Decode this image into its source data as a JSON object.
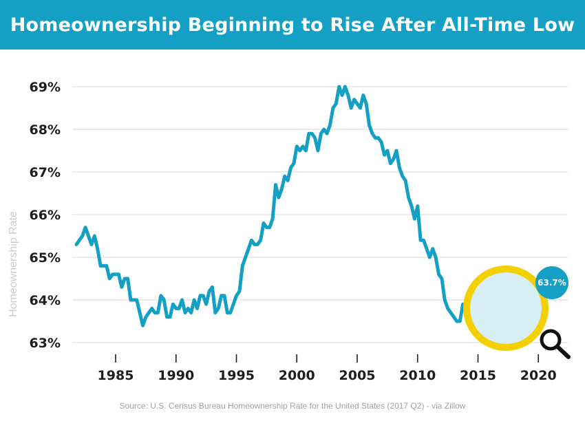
{
  "header": {
    "title": "Homeownership Beginning to Rise After All-Time Low",
    "background_color": "#149fc4"
  },
  "source_note": "Source: U.S. Census Bureau Homeownership Rate for the United States (2017 Q2) - via Zillow",
  "chart_data": {
    "type": "line",
    "title": "Homeownership Beginning to Rise After All-Time Low",
    "xlabel": "",
    "ylabel": "Homeownership Rate",
    "xlim": [
      1981.5,
      2022.5
    ],
    "ylim": [
      62.8,
      69.4
    ],
    "grid": true,
    "line_color": "#149fc4",
    "x_ticks": [
      1985,
      1990,
      1995,
      2000,
      2005,
      2010,
      2015,
      2020
    ],
    "x_tick_labels": [
      "1985",
      "1990",
      "1995",
      "2000",
      "2005",
      "2010",
      "2015",
      "2020"
    ],
    "y_ticks": [
      63,
      64,
      65,
      66,
      67,
      68,
      69
    ],
    "y_tick_labels": [
      "63%",
      "64%",
      "65%",
      "66%",
      "67%",
      "68%",
      "69%"
    ],
    "series": [
      {
        "values": [
          [
            1981.75,
            65.3
          ],
          [
            1982.0,
            65.4
          ],
          [
            1982.25,
            65.5
          ],
          [
            1982.5,
            65.7
          ],
          [
            1982.75,
            65.5
          ],
          [
            1983.0,
            65.3
          ],
          [
            1983.25,
            65.5
          ],
          [
            1983.5,
            65.2
          ],
          [
            1983.75,
            64.8
          ],
          [
            1984.0,
            64.8
          ],
          [
            1984.25,
            64.8
          ],
          [
            1984.5,
            64.5
          ],
          [
            1984.75,
            64.6
          ],
          [
            1985.0,
            64.6
          ],
          [
            1985.25,
            64.6
          ],
          [
            1985.5,
            64.3
          ],
          [
            1985.75,
            64.5
          ],
          [
            1986.0,
            64.5
          ],
          [
            1986.25,
            64.0
          ],
          [
            1986.5,
            64.0
          ],
          [
            1986.75,
            64.0
          ],
          [
            1987.0,
            63.7
          ],
          [
            1987.25,
            63.4
          ],
          [
            1987.5,
            63.6
          ],
          [
            1987.75,
            63.7
          ],
          [
            1988.0,
            63.8
          ],
          [
            1988.25,
            63.7
          ],
          [
            1988.5,
            63.7
          ],
          [
            1988.75,
            64.1
          ],
          [
            1989.0,
            64.0
          ],
          [
            1989.25,
            63.6
          ],
          [
            1989.5,
            63.6
          ],
          [
            1989.75,
            63.9
          ],
          [
            1990.0,
            63.8
          ],
          [
            1990.25,
            63.8
          ],
          [
            1990.5,
            64.0
          ],
          [
            1990.75,
            63.7
          ],
          [
            1991.0,
            63.8
          ],
          [
            1991.25,
            63.7
          ],
          [
            1991.5,
            64.0
          ],
          [
            1991.75,
            63.8
          ],
          [
            1992.0,
            64.1
          ],
          [
            1992.25,
            64.1
          ],
          [
            1992.5,
            63.9
          ],
          [
            1992.75,
            64.2
          ],
          [
            1993.0,
            64.3
          ],
          [
            1993.25,
            63.7
          ],
          [
            1993.5,
            63.8
          ],
          [
            1993.75,
            64.1
          ],
          [
            1994.0,
            64.1
          ],
          [
            1994.25,
            63.7
          ],
          [
            1994.5,
            63.7
          ],
          [
            1994.75,
            63.9
          ],
          [
            1995.0,
            64.1
          ],
          [
            1995.25,
            64.2
          ],
          [
            1995.5,
            64.8
          ],
          [
            1995.75,
            65.0
          ],
          [
            1996.0,
            65.2
          ],
          [
            1996.25,
            65.4
          ],
          [
            1996.5,
            65.3
          ],
          [
            1996.75,
            65.3
          ],
          [
            1997.0,
            65.4
          ],
          [
            1997.25,
            65.8
          ],
          [
            1997.5,
            65.7
          ],
          [
            1997.75,
            65.7
          ],
          [
            1998.0,
            65.9
          ],
          [
            1998.25,
            66.7
          ],
          [
            1998.5,
            66.4
          ],
          [
            1998.75,
            66.6
          ],
          [
            1999.0,
            66.9
          ],
          [
            1999.25,
            66.8
          ],
          [
            1999.5,
            67.1
          ],
          [
            1999.75,
            67.2
          ],
          [
            2000.0,
            67.6
          ],
          [
            2000.25,
            67.5
          ],
          [
            2000.5,
            67.6
          ],
          [
            2000.75,
            67.5
          ],
          [
            2001.0,
            67.9
          ],
          [
            2001.25,
            67.9
          ],
          [
            2001.5,
            67.8
          ],
          [
            2001.75,
            67.5
          ],
          [
            2002.0,
            67.9
          ],
          [
            2002.25,
            68.0
          ],
          [
            2002.5,
            67.9
          ],
          [
            2002.75,
            68.1
          ],
          [
            2003.0,
            68.5
          ],
          [
            2003.25,
            68.6
          ],
          [
            2003.5,
            69.0
          ],
          [
            2003.75,
            68.8
          ],
          [
            2004.0,
            69.0
          ],
          [
            2004.25,
            68.8
          ],
          [
            2004.5,
            68.5
          ],
          [
            2004.75,
            68.7
          ],
          [
            2005.0,
            68.6
          ],
          [
            2005.25,
            68.5
          ],
          [
            2005.5,
            68.8
          ],
          [
            2005.75,
            68.6
          ],
          [
            2006.0,
            68.1
          ],
          [
            2006.25,
            67.9
          ],
          [
            2006.5,
            67.8
          ],
          [
            2006.75,
            67.8
          ],
          [
            2007.0,
            67.7
          ],
          [
            2007.25,
            67.4
          ],
          [
            2007.5,
            67.5
          ],
          [
            2007.75,
            67.2
          ],
          [
            2008.0,
            67.3
          ],
          [
            2008.25,
            67.5
          ],
          [
            2008.5,
            67.1
          ],
          [
            2008.75,
            66.9
          ],
          [
            2009.0,
            66.8
          ],
          [
            2009.25,
            66.4
          ],
          [
            2009.5,
            66.2
          ],
          [
            2009.75,
            65.9
          ],
          [
            2010.0,
            66.2
          ],
          [
            2010.25,
            65.4
          ],
          [
            2010.5,
            65.4
          ],
          [
            2010.75,
            65.2
          ],
          [
            2011.0,
            65.0
          ],
          [
            2011.25,
            65.2
          ],
          [
            2011.5,
            65.0
          ],
          [
            2011.75,
            64.6
          ],
          [
            2012.0,
            64.5
          ],
          [
            2012.25,
            64.0
          ],
          [
            2012.5,
            63.8
          ],
          [
            2012.75,
            63.7
          ],
          [
            2013.0,
            63.6
          ],
          [
            2013.25,
            63.5
          ],
          [
            2013.5,
            63.5
          ],
          [
            2013.75,
            63.9
          ],
          [
            2014.0,
            63.8
          ],
          [
            2014.25,
            63.7
          ],
          [
            2014.5,
            63.9
          ],
          [
            2014.75,
            63.9
          ]
        ]
      }
    ],
    "annotation": {
      "label": "63.7%",
      "color": "#149fc4",
      "ring_color": "#f5d000"
    }
  }
}
